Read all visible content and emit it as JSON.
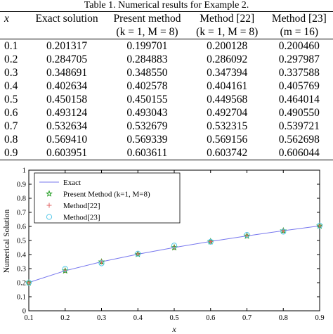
{
  "caption": "Table 1. Numerical results for Example 2.",
  "table": {
    "headers": [
      "x",
      "Exact solution",
      "Present method",
      "Method [22]",
      "Method [23]"
    ],
    "subheaders": [
      "",
      "",
      "(k = 1, M = 8)",
      "(k = 1, M = 8)",
      "(m = 16)"
    ],
    "rows": [
      [
        "0.1",
        "0.201317",
        "0.199701",
        "0.200128",
        "0.200460"
      ],
      [
        "0.2",
        "0.284705",
        "0.284883",
        "0.286092",
        "0.297987"
      ],
      [
        "0.3",
        "0.348691",
        "0.348550",
        "0.347394",
        "0.337588"
      ],
      [
        "0.4",
        "0.402634",
        "0.402578",
        "0.404161",
        "0.405769"
      ],
      [
        "0.5",
        "0.450158",
        "0.450155",
        "0.449568",
        "0.464014"
      ],
      [
        "0.6",
        "0.493124",
        "0.493043",
        "0.492704",
        "0.490550"
      ],
      [
        "0.7",
        "0.532634",
        "0.532679",
        "0.532315",
        "0.539721"
      ],
      [
        "0.8",
        "0.569410",
        "0.569339",
        "0.569156",
        "0.562698"
      ],
      [
        "0.9",
        "0.603951",
        "0.603611",
        "0.603742",
        "0.606044"
      ]
    ]
  },
  "chart_data": {
    "type": "line",
    "xlabel": "x",
    "ylabel": "Numerical Solution",
    "xlim": [
      0.1,
      0.9
    ],
    "ylim": [
      0,
      1
    ],
    "xticks": [
      "0.1",
      "0.2",
      "0.3",
      "0.4",
      "0.5",
      "0.6",
      "0.7",
      "0.8",
      "0.9"
    ],
    "yticks": [
      "0",
      "0.1",
      "0.2",
      "0.3",
      "0.4",
      "0.5",
      "0.6",
      "0.7",
      "0.8",
      "0.9",
      "1"
    ],
    "x": [
      0.1,
      0.2,
      0.3,
      0.4,
      0.5,
      0.6,
      0.7,
      0.8,
      0.9
    ],
    "legend_position": "top-left",
    "grid": false,
    "series": [
      {
        "name": "Exact",
        "marker": "line",
        "color": "#7777ee",
        "values": [
          0.201317,
          0.284705,
          0.348691,
          0.402634,
          0.450158,
          0.493124,
          0.532634,
          0.56941,
          0.603951
        ]
      },
      {
        "name": "Present Method (k=1, M=8)",
        "marker": "star",
        "color": "#1a9a1a",
        "values": [
          0.199701,
          0.284883,
          0.34855,
          0.402578,
          0.450155,
          0.493043,
          0.532679,
          0.569339,
          0.603611
        ]
      },
      {
        "name": "Method[22]",
        "marker": "plus",
        "color": "#e06060",
        "values": [
          0.200128,
          0.286092,
          0.347394,
          0.404161,
          0.449568,
          0.492704,
          0.532315,
          0.569156,
          0.603742
        ]
      },
      {
        "name": "Method[23]",
        "marker": "circle",
        "color": "#55c8e8",
        "values": [
          0.20046,
          0.297987,
          0.337588,
          0.405769,
          0.464014,
          0.49055,
          0.539721,
          0.562698,
          0.606044
        ]
      }
    ]
  }
}
